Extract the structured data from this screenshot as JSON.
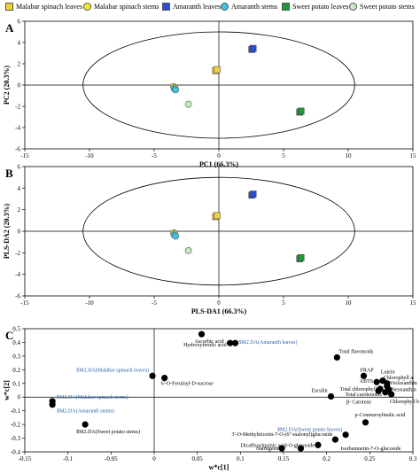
{
  "legend": [
    {
      "label": "Malabar spinach leaves",
      "color": "#f2d23c",
      "shape": "square"
    },
    {
      "label": "Malabar spinach stems",
      "color": "#f7ec2a",
      "shape": "circle"
    },
    {
      "label": "Amaranth leaves",
      "color": "#2a4ed8",
      "shape": "square"
    },
    {
      "label": "Amaranth stems",
      "color": "#38c7e6",
      "shape": "circle"
    },
    {
      "label": "Sweet potato leaves",
      "color": "#1f9a3a",
      "shape": "square"
    },
    {
      "label": "Sweet potato stems",
      "color": "#c8e6c0",
      "shape": "circle"
    }
  ],
  "chart_data": [
    {
      "panel": "A",
      "type": "scatter",
      "xlabel": "PC1 (66.3%)",
      "ylabel": "PC2 (20.3%)",
      "xlim": [
        -15,
        15
      ],
      "ylim": [
        -6,
        6
      ],
      "xticks": [
        -15,
        -10,
        -5,
        0,
        5,
        10,
        15
      ],
      "yticks": [
        -6,
        -4,
        -2,
        0,
        2,
        4,
        6
      ],
      "ellipse": {
        "cx": 0,
        "cy": 0,
        "rx": 10.5,
        "ry": 5.0
      },
      "series": [
        {
          "name": "Malabar spinach leaves",
          "points": [
            [
              -0.25,
              1.35
            ],
            [
              -0.15,
              1.45
            ]
          ]
        },
        {
          "name": "Malabar spinach stems",
          "points": [
            [
              -3.5,
              -0.15
            ],
            [
              -3.4,
              -0.25
            ]
          ]
        },
        {
          "name": "Amaranth leaves",
          "points": [
            [
              2.55,
              3.35
            ],
            [
              2.65,
              3.45
            ]
          ]
        },
        {
          "name": "Amaranth stems",
          "points": [
            [
              -3.45,
              -0.35
            ],
            [
              -3.35,
              -0.45
            ]
          ]
        },
        {
          "name": "Sweet potato leaves",
          "points": [
            [
              6.25,
              -2.55
            ],
            [
              6.35,
              -2.45
            ]
          ]
        },
        {
          "name": "Sweet potato stems",
          "points": [
            [
              -2.35,
              -1.8
            ]
          ]
        }
      ]
    },
    {
      "panel": "B",
      "type": "scatter",
      "xlabel": "PLS-DA1 (66.3%)",
      "ylabel": "PLS-DA2 (20.3%)",
      "xlim": [
        -15,
        15
      ],
      "ylim": [
        -6,
        6
      ],
      "xticks": [
        -15,
        -10,
        -5,
        0,
        5,
        10,
        15
      ],
      "yticks": [
        -6,
        -4,
        -2,
        0,
        2,
        4,
        6
      ],
      "ellipse": {
        "cx": 0,
        "cy": 0,
        "rx": 10.5,
        "ry": 5.0
      },
      "series": [
        {
          "name": "Malabar spinach leaves",
          "points": [
            [
              -0.25,
              1.35
            ],
            [
              -0.15,
              1.45
            ]
          ]
        },
        {
          "name": "Malabar spinach stems",
          "points": [
            [
              -3.5,
              -0.15
            ],
            [
              -3.4,
              -0.25
            ]
          ]
        },
        {
          "name": "Amaranth leaves",
          "points": [
            [
              2.55,
              3.35
            ],
            [
              2.65,
              3.45
            ]
          ]
        },
        {
          "name": "Amaranth stems",
          "points": [
            [
              -3.45,
              -0.35
            ],
            [
              -3.35,
              -0.45
            ]
          ]
        },
        {
          "name": "Sweet potato leaves",
          "points": [
            [
              6.25,
              -2.55
            ],
            [
              6.35,
              -2.45
            ]
          ]
        },
        {
          "name": "Sweet potato stems",
          "points": [
            [
              -2.35,
              -1.8
            ]
          ]
        }
      ]
    },
    {
      "panel": "C",
      "type": "scatter",
      "xlabel": "w*c[1]",
      "ylabel": "w*c[2]",
      "xlim": [
        -0.15,
        0.3
      ],
      "ylim": [
        -0.4,
        0.5
      ],
      "xticks": [
        -0.15,
        -0.1,
        -0.05,
        0,
        0.05,
        0.1,
        0.15,
        0.2,
        0.25,
        0.3
      ],
      "yticks": [
        -0.4,
        -0.3,
        -0.2,
        -0.1,
        0,
        0.1,
        0.2,
        0.3,
        0.4,
        0.5
      ],
      "points": [
        {
          "x": 0.055,
          "y": 0.46,
          "label": "Ascorbic acid",
          "dx": -8,
          "dy": 10,
          "anchor": "start",
          "blue": false
        },
        {
          "x": 0.088,
          "y": 0.395,
          "label": "Hydroxyferulic acid",
          "dx": -4,
          "dy": 4,
          "anchor": "end",
          "blue": false
        },
        {
          "x": 0.094,
          "y": 0.395,
          "label": "$M2.DA(Amaranth leaves)",
          "dx": 4,
          "dy": 1,
          "anchor": "start",
          "blue": true
        },
        {
          "x": 0.212,
          "y": 0.29,
          "label": "Total flavonoids",
          "dx": 2,
          "dy": -5,
          "anchor": "start",
          "blue": false
        },
        {
          "x": -0.002,
          "y": 0.155,
          "label": "$M2.DA(Malabar spinach leaves)",
          "dx": -4,
          "dy": -5,
          "anchor": "end",
          "blue": true
        },
        {
          "x": 0.012,
          "y": 0.14,
          "label": "6'-O-Feruloyl-D-sucrose",
          "dx": -4,
          "dy": 8,
          "anchor": "start",
          "blue": false
        },
        {
          "x": 0.243,
          "y": 0.155,
          "label": "FRAP",
          "dx": -4,
          "dy": -5,
          "anchor": "start",
          "blue": false
        },
        {
          "x": 0.265,
          "y": 0.12,
          "label": "Lutein",
          "dx": -2,
          "dy": -8,
          "anchor": "start",
          "blue": false
        },
        {
          "x": 0.27,
          "y": 0.1,
          "label": "Chlorophyll a",
          "dx": -4,
          "dy": -5,
          "anchor": "start",
          "blue": false
        },
        {
          "x": 0.258,
          "y": 0.11,
          "label": "ABTS",
          "dx": -4,
          "dy": 1,
          "anchor": "end",
          "blue": false
        },
        {
          "x": 0.27,
          "y": 0.08,
          "label": "Violaxanthin",
          "dx": 3,
          "dy": -2,
          "anchor": "start",
          "blue": false
        },
        {
          "x": 0.262,
          "y": 0.06,
          "label": "Total chlorophyll",
          "dx": -4,
          "dy": 2,
          "anchor": "end",
          "blue": false
        },
        {
          "x": 0.272,
          "y": 0.055,
          "label": "Neoxanthin",
          "dx": 3,
          "dy": 2,
          "anchor": "start",
          "blue": false
        },
        {
          "x": 0.268,
          "y": 0.035,
          "label": "Total carotenoids",
          "dx": -4,
          "dy": 4,
          "anchor": "end",
          "blue": false
        },
        {
          "x": 0.275,
          "y": 0.02,
          "label": "Chlorophyll b",
          "dx": -2,
          "dy": 10,
          "anchor": "start",
          "blue": false
        },
        {
          "x": 0.205,
          "y": 0.005,
          "label": "Esculin",
          "dx": -4,
          "dy": -5,
          "anchor": "end",
          "blue": false
        },
        {
          "x": 0.26,
          "y": 0.045,
          "label": "β- Carotene",
          "dx": -8,
          "dy": 14,
          "anchor": "end",
          "blue": false
        },
        {
          "x": -0.118,
          "y": -0.03,
          "label": "$M2.DA(Malabar spinach stems)",
          "dx": 5,
          "dy": -3,
          "anchor": "start",
          "blue": true
        },
        {
          "x": -0.118,
          "y": -0.055,
          "label": "$M2.DA(Amaranth stems)",
          "dx": 5,
          "dy": 9,
          "anchor": "start",
          "blue": true
        },
        {
          "x": -0.08,
          "y": -0.2,
          "label": "$M2.DA(Sweet potato stems)",
          "dx": -10,
          "dy": 10,
          "anchor": "start",
          "blue": false
        },
        {
          "x": 0.245,
          "y": -0.185,
          "label": "p-Coumaroylmalic acid",
          "dx": -12,
          "dy": -7,
          "anchor": "start",
          "blue": false
        },
        {
          "x": 0.222,
          "y": -0.275,
          "label": "$M2.DA(Sweet potato leaves)",
          "dx": -4,
          "dy": -4,
          "anchor": "end",
          "blue": true
        },
        {
          "x": 0.21,
          "y": -0.31,
          "label": "3'-O-Methyltricetin-7-O-(6''-malonyl)glucoside",
          "dx": -3,
          "dy": -4,
          "anchor": "end",
          "blue": false
        },
        {
          "x": 0.19,
          "y": -0.35,
          "label": "Dicaffeoylquinic acid-O-glucoside",
          "dx": -4,
          "dy": 2,
          "anchor": "end",
          "blue": false
        },
        {
          "x": 0.148,
          "y": -0.375,
          "label": "Naringenin",
          "dx": -2,
          "dy": 2,
          "anchor": "end",
          "blue": false
        },
        {
          "x": 0.17,
          "y": -0.375,
          "label": "Isorhamnetin-7-O-glucoside",
          "dx": 45,
          "dy": 2,
          "anchor": "start",
          "blue": false
        }
      ]
    }
  ]
}
